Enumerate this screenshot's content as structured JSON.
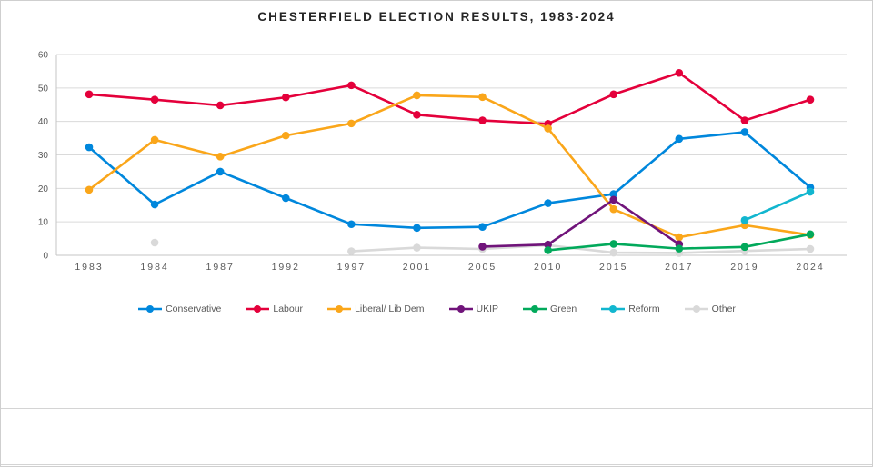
{
  "page": {
    "title": "CHESTERFIELD ELECTION RESULTS, 1983-2024"
  },
  "chart_data": {
    "type": "line",
    "title": "CHESTERFIELD ELECTION RESULTS, 1983-2024",
    "categories": [
      "1983",
      "1984",
      "1987",
      "1992",
      "1997",
      "2001",
      "2005",
      "2010",
      "2015",
      "2017",
      "2019",
      "2024"
    ],
    "series": [
      {
        "name": "Conservative",
        "color": "#0087DC",
        "values": [
          32.3,
          15.2,
          25.0,
          17.1,
          9.3,
          8.2,
          8.5,
          15.6,
          18.3,
          34.8,
          36.8,
          20.3
        ]
      },
      {
        "name": "Labour",
        "color": "#E4003B",
        "values": [
          48.1,
          46.5,
          44.8,
          47.2,
          50.8,
          42.0,
          40.3,
          39.3,
          48.1,
          54.5,
          40.3,
          46.5
        ]
      },
      {
        "name": "Liberal/ Lib Dem",
        "color": "#FAA61A",
        "values": [
          19.6,
          34.5,
          29.5,
          35.8,
          39.4,
          47.8,
          47.3,
          37.9,
          13.8,
          5.4,
          9.0,
          6.1
        ]
      },
      {
        "name": "UKIP",
        "color": "#70147A",
        "values": [
          null,
          null,
          null,
          null,
          null,
          null,
          2.6,
          3.2,
          16.6,
          3.3,
          null,
          null
        ]
      },
      {
        "name": "Green",
        "color": "#02A95B",
        "values": [
          null,
          null,
          null,
          null,
          null,
          null,
          null,
          1.5,
          3.4,
          2.0,
          2.5,
          6.3
        ]
      },
      {
        "name": "Reform",
        "color": "#12B6CF",
        "values": [
          null,
          null,
          null,
          null,
          null,
          null,
          null,
          null,
          null,
          null,
          10.5,
          19.0
        ]
      },
      {
        "name": "Other",
        "color": "#D9D9D9",
        "values": [
          null,
          3.8,
          null,
          null,
          1.2,
          2.3,
          1.9,
          3.0,
          0.8,
          0.7,
          1.3,
          1.9
        ]
      }
    ],
    "ylim": [
      0,
      60
    ],
    "y_ticks": [
      "0",
      "10",
      "20",
      "30",
      "40",
      "50",
      "60"
    ],
    "ytick_step": 10,
    "grid": true,
    "legend_position": "bottom",
    "gridline_color": "#dadada",
    "axis_line_color": "#c6c6c6",
    "tick_label_color": "#595959"
  }
}
